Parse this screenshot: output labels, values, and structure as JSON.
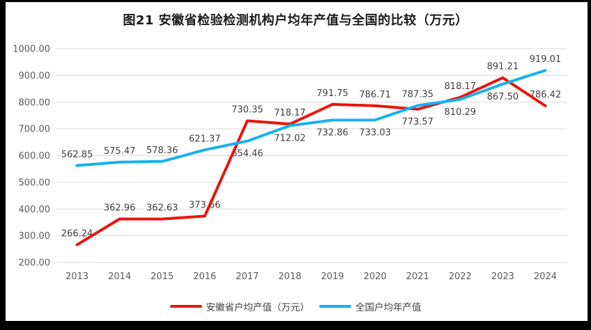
{
  "chart_data": {
    "type": "line",
    "title": "图21 安徽省检验检测机构户均年产值与全国的比较（万元）",
    "categories": [
      "2013",
      "2014",
      "2015",
      "2016",
      "2017",
      "2018",
      "2019",
      "2020",
      "2021",
      "2022",
      "2023",
      "2024"
    ],
    "series": [
      {
        "name": "安徽省户均产值（万元）",
        "color": "#e9150d",
        "values": [
          266.24,
          362.96,
          362.63,
          373.66,
          730.35,
          718.17,
          791.75,
          786.71,
          773.57,
          818.17,
          891.21,
          786.42
        ],
        "label_placement": [
          "above",
          "above",
          "above",
          "above",
          "above",
          "above",
          "above",
          "above",
          "below",
          "above",
          "above",
          "above"
        ]
      },
      {
        "name": "全国户均年产值",
        "color": "#15b1ef",
        "values": [
          562.85,
          575.47,
          578.36,
          621.37,
          654.46,
          712.02,
          732.86,
          733.03,
          787.35,
          810.29,
          867.5,
          919.01
        ],
        "label_placement": [
          "above",
          "above",
          "above",
          "above",
          "below",
          "below",
          "below",
          "below",
          "above",
          "below",
          "below",
          "above"
        ]
      }
    ],
    "y_axis": {
      "min": 200,
      "max": 1000,
      "step": 100,
      "tick_labels": [
        "200.00",
        "300.00",
        "400.00",
        "500.00",
        "600.00",
        "700.00",
        "800.00",
        "900.00",
        "1000.00"
      ]
    },
    "grid": true,
    "legend_position": "bottom",
    "label_decimals": 2,
    "colors": {
      "gridline": "#d9d9d9",
      "axis_text": "#595959",
      "data_label": "#3f3f3f",
      "title_text": "#1a1a1a",
      "plot_background": "#ffffff",
      "frame": "#000000"
    }
  }
}
